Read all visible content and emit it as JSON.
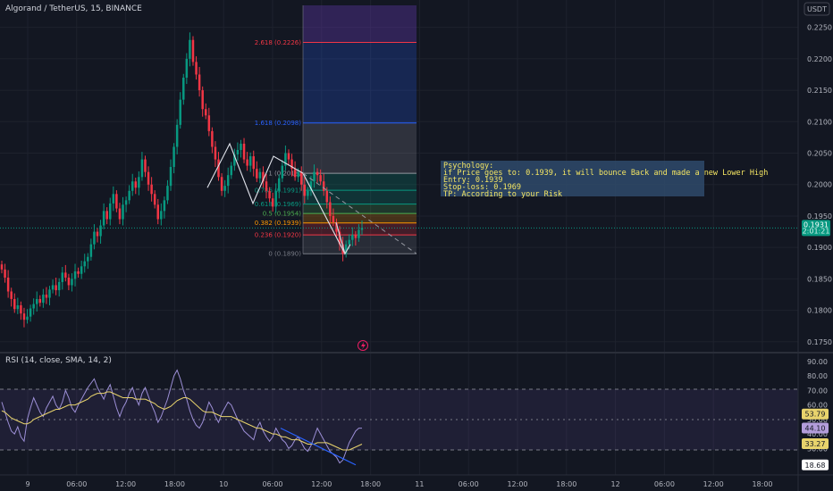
{
  "chart_data": {
    "type": "candlestick",
    "title": "Algorand / TetherUS, 15, BINANCE",
    "currency": "USDT",
    "price_axis": {
      "ticks": [
        "0.2250",
        "0.2200",
        "0.2150",
        "0.2100",
        "0.2050",
        "0.2000",
        "0.1950",
        "0.1900",
        "0.1850",
        "0.1800",
        "0.1750"
      ],
      "range": [
        0.1737,
        0.2285
      ]
    },
    "time_axis": {
      "ticks": [
        "9",
        "06:00",
        "12:00",
        "18:00",
        "10",
        "06:00",
        "12:00",
        "18:00",
        "11",
        "06:00",
        "12:00",
        "18:00",
        "12",
        "06:00",
        "12:00",
        "18:00"
      ]
    },
    "last_price": {
      "value": "0.1931",
      "sub": "2:01:21"
    },
    "series_close": [
      0.1865,
      0.1852,
      0.183,
      0.1818,
      0.1802,
      0.1808,
      0.1795,
      0.1785,
      0.179,
      0.1803,
      0.181,
      0.1818,
      0.1812,
      0.1825,
      0.182,
      0.1833,
      0.184,
      0.1832,
      0.1845,
      0.186,
      0.1852,
      0.184,
      0.185,
      0.1862,
      0.1858,
      0.187,
      0.1878,
      0.1885,
      0.1905,
      0.1925,
      0.1918,
      0.1935,
      0.1958,
      0.1945,
      0.197,
      0.1985,
      0.1962,
      0.1945,
      0.1968,
      0.1975,
      0.199,
      0.2005,
      0.1995,
      0.2012,
      0.204,
      0.202,
      0.2,
      0.1985,
      0.1968,
      0.1945,
      0.1958,
      0.1975,
      0.1998,
      0.2028,
      0.206,
      0.2095,
      0.2135,
      0.217,
      0.22,
      0.223,
      0.2195,
      0.2175,
      0.215,
      0.212,
      0.211,
      0.2085,
      0.206,
      0.204,
      0.2012,
      0.199,
      0.1998,
      0.2015,
      0.203,
      0.2048,
      0.2055,
      0.2065,
      0.204,
      0.203,
      0.2045,
      0.2025,
      0.201,
      0.202,
      0.2005,
      0.199,
      0.1978,
      0.1965,
      0.199,
      0.201,
      0.203,
      0.205,
      0.204,
      0.2025,
      0.2012,
      0.202,
      0.2,
      0.1982,
      0.199,
      0.2005,
      0.202,
      0.2015,
      0.2005,
      0.199,
      0.1972,
      0.195,
      0.194,
      0.1925,
      0.1905,
      0.189,
      0.1905,
      0.1912,
      0.192,
      0.1915,
      0.1928,
      0.1931
    ],
    "fib": {
      "levels": [
        {
          "label": "2.618 (0.2226)",
          "value": 0.2226,
          "color": "#f23645"
        },
        {
          "label": "1.618 (0.2098)",
          "value": 0.2098,
          "color": "#2962ff"
        },
        {
          "label": "1 (0.2018)",
          "value": 0.2018,
          "color": "#9598a1"
        },
        {
          "label": "0.786 (0.1991)",
          "value": 0.1991,
          "color": "#089981"
        },
        {
          "label": "0.618 (0.1969)",
          "value": 0.1969,
          "color": "#089981"
        },
        {
          "label": "0.5 (0.1954)",
          "value": 0.1954,
          "color": "#4caf50"
        },
        {
          "label": "0.382 (0.1939)",
          "value": 0.1939,
          "color": "#ff9800"
        },
        {
          "label": "0.236 (0.1920)",
          "value": 0.192,
          "color": "#f23645"
        },
        {
          "label": "0 (0.1890)",
          "value": 0.189,
          "color": "#787b86"
        }
      ],
      "top_value": 0.2285
    },
    "annotation": {
      "lines": [
        "Psychology:",
        "if Price goes to: 0.1939, it will bounce Back and made a new Lower High",
        "Entry: 0.1939",
        "Stop-loss: 0.1969",
        "TP: According to your Risk"
      ]
    },
    "rsi": {
      "title": "RSI (14, close, SMA, 14, 2)",
      "ticks": [
        "90.00",
        "80.00",
        "70.00",
        "60.00",
        "50.00",
        "40.00",
        "30.00",
        "20.00"
      ],
      "range": [
        13,
        93
      ],
      "badges": [
        {
          "text": "53.79",
          "value": 53.79,
          "bg": "#e8d36c",
          "fg": "#131722"
        },
        {
          "text": "44.10",
          "value": 44.1,
          "bg": "#b39ddb",
          "fg": "#131722"
        },
        {
          "text": "33.27",
          "value": 33.27,
          "bg": "#e8d36c",
          "fg": "#131722"
        },
        {
          "text": "18.68",
          "value": 18.68,
          "bg": "#ffffff",
          "fg": "#131722"
        }
      ],
      "series_rsi": [
        62,
        55,
        48,
        42,
        40,
        45,
        38,
        35,
        50,
        58,
        65,
        60,
        55,
        52,
        58,
        62,
        66,
        60,
        57,
        62,
        70,
        65,
        58,
        55,
        60,
        64,
        68,
        72,
        75,
        78,
        72,
        68,
        64,
        70,
        74,
        66,
        58,
        52,
        58,
        62,
        68,
        72,
        65,
        60,
        68,
        72,
        66,
        60,
        55,
        48,
        52,
        58,
        64,
        72,
        80,
        84,
        78,
        70,
        64,
        56,
        50,
        46,
        44,
        48,
        55,
        62,
        58,
        52,
        48,
        54,
        58,
        62,
        60,
        55,
        50,
        46,
        42,
        40,
        38,
        36,
        44,
        48,
        42,
        38,
        35,
        38,
        44,
        40,
        36,
        34,
        30,
        32,
        36,
        38,
        34,
        30,
        28,
        32,
        38,
        44,
        40,
        36,
        32,
        28,
        26,
        24,
        20,
        22,
        28,
        34,
        38,
        42,
        44,
        44
      ],
      "series_ma": [
        56,
        55,
        53,
        51,
        50,
        49,
        48,
        47,
        47,
        48,
        50,
        51,
        52,
        53,
        54,
        55,
        56,
        57,
        57,
        58,
        59,
        60,
        60,
        60,
        61,
        62,
        63,
        64,
        66,
        67,
        68,
        68,
        68,
        69,
        69,
        68,
        67,
        66,
        65,
        65,
        65,
        65,
        64,
        64,
        64,
        64,
        63,
        62,
        61,
        59,
        58,
        57,
        58,
        59,
        61,
        63,
        64,
        65,
        65,
        64,
        62,
        60,
        58,
        56,
        55,
        55,
        55,
        54,
        53,
        52,
        52,
        52,
        52,
        51,
        50,
        49,
        48,
        47,
        46,
        45,
        44,
        44,
        43,
        42,
        41,
        40,
        40,
        39,
        38,
        38,
        37,
        36,
        36,
        36,
        35,
        34,
        33,
        33,
        33,
        34,
        34,
        34,
        34,
        33,
        32,
        31,
        30,
        29,
        29,
        29,
        30,
        31,
        32,
        33
      ]
    }
  }
}
